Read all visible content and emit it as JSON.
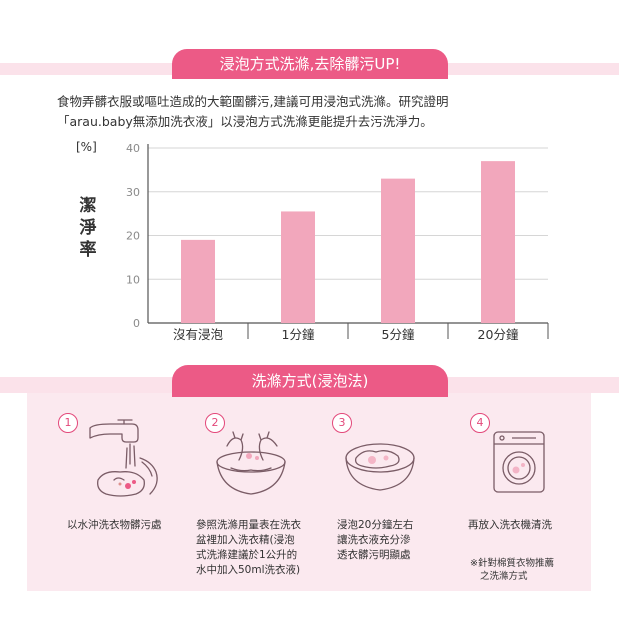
{
  "header": {
    "title": "浸泡方式洗滌,去除髒污UP!"
  },
  "intro": {
    "line1": "食物弄髒衣服或嘔吐造成的大範圍髒污,建議可用浸泡式洗滌。研究證明",
    "line2": "「arau.baby無添加洗衣液」以浸泡方式洗滌更能提升去污洗淨力。"
  },
  "chart_data": {
    "type": "bar",
    "unit_label": "[%]",
    "ylabel": "潔淨率",
    "categories": [
      "沒有浸泡",
      "1分鐘",
      "5分鐘",
      "20分鐘"
    ],
    "values": [
      19,
      25.5,
      33,
      37
    ],
    "ylim": [
      0,
      40
    ],
    "yticks": [
      0,
      10,
      20,
      30,
      40
    ],
    "grid": true,
    "bar_color": "#f2a7bc"
  },
  "method": {
    "title": "洗滌方式(浸泡法)",
    "steps": [
      {
        "number": "1",
        "text_lines": [
          "以水沖洗衣物髒污處"
        ],
        "icon": "faucet-rinse-icon"
      },
      {
        "number": "2",
        "text_lines": [
          "參照洗滌用量表在洗衣",
          "盆裡加入洗衣精(浸泡",
          "式洗滌建議於1公升的",
          "水中加入50ml洗衣液)"
        ],
        "icon": "basin-hands-icon"
      },
      {
        "number": "3",
        "text_lines": [
          "浸泡20分鐘左右",
          "讓洗衣液充分滲",
          "透衣髒污明顯處"
        ],
        "icon": "soaking-basin-icon"
      },
      {
        "number": "4",
        "text_lines": [
          "再放入洗衣機清洗"
        ],
        "icon": "washing-machine-icon"
      }
    ],
    "note_lines": [
      "※針對棉質衣物推薦",
      "之洗滌方式"
    ]
  },
  "colors": {
    "accent": "#ec5a86",
    "band": "#fbe2ea",
    "panel": "#fbe9ef",
    "bar": "#f2a7bc",
    "line": "#7a5c66"
  }
}
